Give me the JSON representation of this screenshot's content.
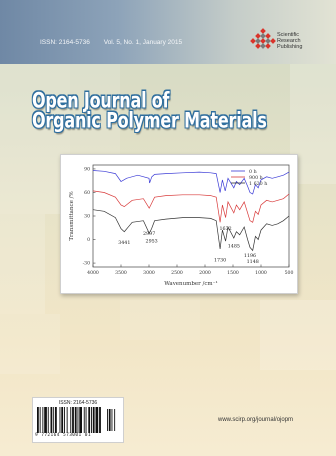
{
  "header": {
    "issn": "ISSN: 2164-5736",
    "volume": "Vol. 5, No. 1, January 2015"
  },
  "publisher": {
    "line1": "Scientific",
    "line2": "Research",
    "line3": "Publishing"
  },
  "journal": {
    "title_line1": "Open Journal of",
    "title_line2": "Organic Polymer Materials"
  },
  "chart_data": {
    "type": "line",
    "xlabel": "Wavenumber /cm⁻¹",
    "ylabel": "Transmittance /%",
    "xlim": [
      4000,
      500
    ],
    "ylim": [
      -35,
      95
    ],
    "x_ticks": [
      4000,
      3500,
      3000,
      2500,
      2000,
      1500,
      1000,
      500
    ],
    "y_ticks": [
      -30,
      0,
      30,
      60,
      90
    ],
    "legend_position": "top-right",
    "series": [
      {
        "name": "0 h",
        "color": "#3b3bd6",
        "x": [
          4000,
          3800,
          3600,
          3500,
          3400,
          3200,
          3000,
          2990,
          2950,
          2900,
          2700,
          2400,
          2100,
          1900,
          1800,
          1730,
          1690,
          1640,
          1590,
          1485,
          1440,
          1380,
          1300,
          1240,
          1196,
          1148,
          1100,
          1050,
          1000,
          900,
          800,
          700,
          600,
          500
        ],
        "y": [
          88,
          87,
          84,
          74,
          78,
          82,
          78,
          72,
          80,
          83,
          84,
          85,
          86,
          85,
          84,
          60,
          76,
          62,
          78,
          66,
          74,
          70,
          78,
          68,
          60,
          58,
          70,
          66,
          76,
          80,
          78,
          80,
          82,
          86
        ]
      },
      {
        "name": "900 h",
        "color": "#d83a3a",
        "x": [
          4000,
          3800,
          3600,
          3500,
          3441,
          3300,
          3100,
          2997,
          2953,
          2900,
          2700,
          2400,
          2100,
          1900,
          1800,
          1730,
          1690,
          1632,
          1590,
          1485,
          1440,
          1380,
          1300,
          1240,
          1196,
          1148,
          1100,
          1050,
          1000,
          900,
          800,
          700,
          600,
          500
        ],
        "y": [
          62,
          60,
          54,
          44,
          42,
          50,
          52,
          40,
          46,
          54,
          56,
          57,
          57,
          56,
          54,
          22,
          44,
          28,
          48,
          34,
          44,
          38,
          48,
          34,
          24,
          22,
          36,
          32,
          44,
          50,
          48,
          50,
          52,
          58
        ]
      },
      {
        "name": "1 620 h",
        "color": "#333333",
        "x": [
          4000,
          3800,
          3600,
          3500,
          3441,
          3300,
          3100,
          2997,
          2953,
          2900,
          2700,
          2400,
          2100,
          1900,
          1800,
          1730,
          1690,
          1632,
          1590,
          1485,
          1440,
          1380,
          1300,
          1240,
          1196,
          1148,
          1100,
          1050,
          1000,
          900,
          800,
          700,
          600,
          500
        ],
        "y": [
          38,
          36,
          28,
          14,
          10,
          22,
          24,
          8,
          14,
          24,
          26,
          28,
          28,
          27,
          24,
          -12,
          12,
          -2,
          16,
          2,
          10,
          6,
          16,
          0,
          -10,
          -14,
          4,
          0,
          12,
          20,
          18,
          20,
          24,
          30
        ]
      }
    ],
    "annotations": [
      {
        "text": "3441",
        "x": 3441,
        "y": -6
      },
      {
        "text": "2997",
        "x": 2997,
        "y": 6
      },
      {
        "text": "2953",
        "x": 2953,
        "y": -4
      },
      {
        "text": "1730",
        "x": 1730,
        "y": -28
      },
      {
        "text": "1632",
        "x": 1632,
        "y": 12
      },
      {
        "text": "1485",
        "x": 1485,
        "y": -10
      },
      {
        "text": "1196",
        "x": 1196,
        "y": -22
      },
      {
        "text": "1148",
        "x": 1148,
        "y": -30
      }
    ]
  },
  "barcode": {
    "issn_label": "ISSN: 2164-5736",
    "digits": "9 772164 573001     01"
  },
  "footer": {
    "url": "www.scirp.org/journal/ojopm"
  },
  "colors": {
    "title_outline": "#2f6e9e",
    "logo_red": "#d9342b",
    "band": "#7b90ab"
  }
}
